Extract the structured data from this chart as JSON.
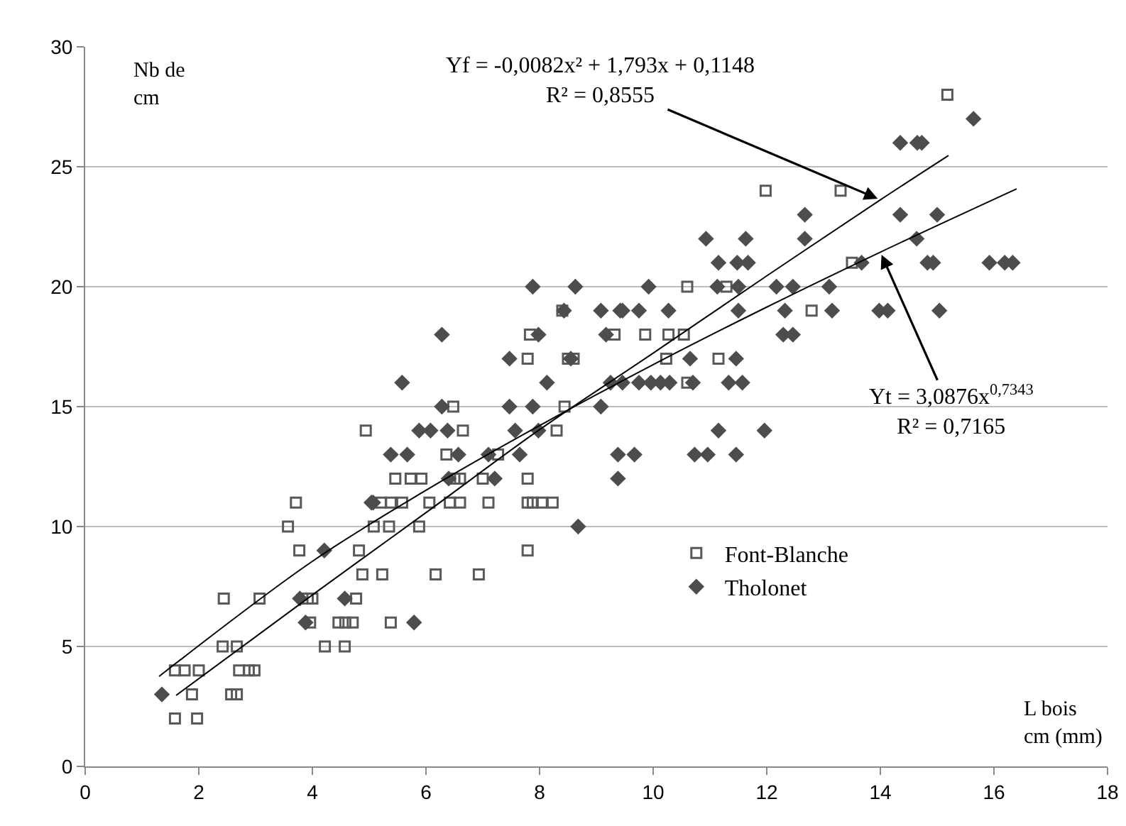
{
  "chart_data": {
    "type": "scatter",
    "xlabel": "L bois\ncm (mm)",
    "ylabel": "Nb de\ncm",
    "xlim": [
      0,
      18
    ],
    "xticks": [
      0,
      2,
      4,
      6,
      8,
      10,
      12,
      14,
      16,
      18
    ],
    "ylim": [
      0,
      30
    ],
    "yticks": [
      0,
      5,
      10,
      15,
      20,
      25,
      30
    ],
    "grid": "y",
    "legend": "bottom right",
    "series": [
      {
        "name": "Font-Blanche",
        "color": "#595959",
        "marker": "square",
        "x": [
          1.58,
          1.75,
          2.0,
          1.88,
          1.58,
          1.97,
          2.42,
          2.67,
          2.44,
          3.07,
          2.57,
          2.67,
          2.71,
          2.88,
          2.98,
          3.57,
          3.71,
          3.77,
          3.92,
          4.0,
          3.96,
          4.22,
          4.57,
          4.46,
          4.58,
          4.71,
          4.77,
          4.82,
          4.88,
          5.23,
          5.38,
          4.94,
          5.08,
          5.35,
          5.21,
          5.38,
          5.58,
          5.46,
          5.73,
          5.88,
          5.92,
          6.06,
          6.42,
          6.6,
          6.5,
          6.6,
          7.0,
          7.1,
          7.79,
          7.79,
          7.88,
          8.04,
          8.23,
          7.79,
          6.17,
          6.93,
          6.36,
          7.27,
          6.48,
          6.65,
          8.44,
          8.3,
          7.79,
          7.83,
          8.4,
          8.5,
          8.6,
          9.32,
          11.98,
          10.6,
          11.29,
          9.86,
          10.27,
          10.54,
          10.23,
          11.15,
          10.6,
          12.79,
          13.3,
          15.18,
          13.5
        ],
        "values": [
          4,
          4,
          4,
          3,
          2,
          2,
          5,
          5,
          7,
          7,
          3,
          3,
          4,
          4,
          4,
          10,
          11,
          9,
          7,
          7,
          6,
          5,
          5,
          6,
          6,
          6,
          7,
          9,
          8,
          8,
          6,
          14,
          10,
          10,
          11,
          11,
          11,
          12,
          12,
          10,
          12,
          11,
          11,
          11,
          12,
          12,
          12,
          11,
          12,
          11,
          11,
          11,
          11,
          9,
          8,
          8,
          13,
          13,
          15,
          14,
          15,
          14,
          17,
          18,
          19,
          17,
          17,
          18,
          24,
          20,
          20,
          18,
          18,
          18,
          17,
          17,
          16,
          19,
          24,
          28,
          21
        ]
      },
      {
        "name": "Tholonet",
        "color": "#4d4d4d",
        "marker": "diamond",
        "x": [
          1.35,
          3.78,
          3.88,
          4.21,
          4.57,
          5.79,
          5.04,
          5.38,
          5.67,
          5.88,
          6.08,
          6.38,
          7.88,
          8.63,
          9.08,
          9.42,
          6.28,
          7.98,
          9.17,
          7.47,
          8.55,
          5.58,
          8.13,
          6.28,
          7.47,
          7.88,
          9.08,
          7.57,
          7.98,
          6.57,
          7.1,
          7.65,
          9.38,
          9.38,
          7.21,
          6.4,
          8.68,
          10.93,
          11.63,
          12.67,
          12.67,
          11.15,
          11.48,
          11.67,
          9.92,
          11.13,
          11.5,
          12.17,
          12.46,
          13.1,
          9.46,
          9.75,
          10.27,
          11.5,
          12.32,
          13.15,
          12.29,
          12.46,
          10.65,
          11.46,
          9.25,
          9.46,
          9.75,
          9.96,
          10.13,
          10.29,
          10.7,
          11.33,
          11.57,
          11.15,
          11.96,
          9.67,
          10.73,
          10.96,
          11.46,
          15.64,
          14.35,
          14.65,
          14.73,
          14.35,
          15.0,
          14.64,
          13.67,
          14.83,
          14.93,
          15.92,
          16.19,
          16.33,
          13.98,
          14.13,
          15.04,
          5.07,
          8.43
        ],
        "values": [
          3,
          7,
          6,
          9,
          7,
          6,
          11,
          13,
          13,
          14,
          14,
          14,
          20,
          20,
          19,
          19,
          18,
          18,
          18,
          17,
          17,
          16,
          16,
          15,
          15,
          15,
          15,
          14,
          14,
          13,
          13,
          13,
          13,
          12,
          12,
          12,
          10,
          22,
          22,
          23,
          22,
          21,
          21,
          21,
          20,
          20,
          20,
          20,
          20,
          20,
          19,
          19,
          19,
          19,
          19,
          19,
          18,
          18,
          17,
          17,
          16,
          16,
          16,
          16,
          16,
          16,
          16,
          16,
          16,
          14,
          14,
          13,
          13,
          13,
          13,
          27,
          26,
          26,
          26,
          23,
          23,
          22,
          21,
          21,
          21,
          21,
          21,
          21,
          19,
          19,
          19,
          11,
          19
        ]
      },
      {
        "type": "line",
        "color": "#000000",
        "x": [
          1.6,
          4,
          6,
          8,
          10,
          12,
          14,
          15.2
        ],
        "values": [
          2.96,
          7.15,
          10.58,
          14.04,
          17.23,
          20.45,
          23.62,
          25.47
        ]
      },
      {
        "type": "line",
        "color": "#000000",
        "x": [
          1.3,
          4,
          6,
          8,
          10,
          12,
          14,
          16.4
        ],
        "values": [
          3.75,
          8.55,
          11.51,
          14.21,
          16.75,
          19.15,
          21.44,
          24.08
        ]
      }
    ],
    "annotations": [
      {
        "text": "Yf = -0,0082x² + 1,793x + 0,1148\nR² = 0,8555",
        "x": 14,
        "y": 23.62
      },
      {
        "text": "Yt = 3,0876x$^{0,7343}$\nR² = 0,7165",
        "x": 14,
        "y": 21.44
      }
    ]
  }
}
